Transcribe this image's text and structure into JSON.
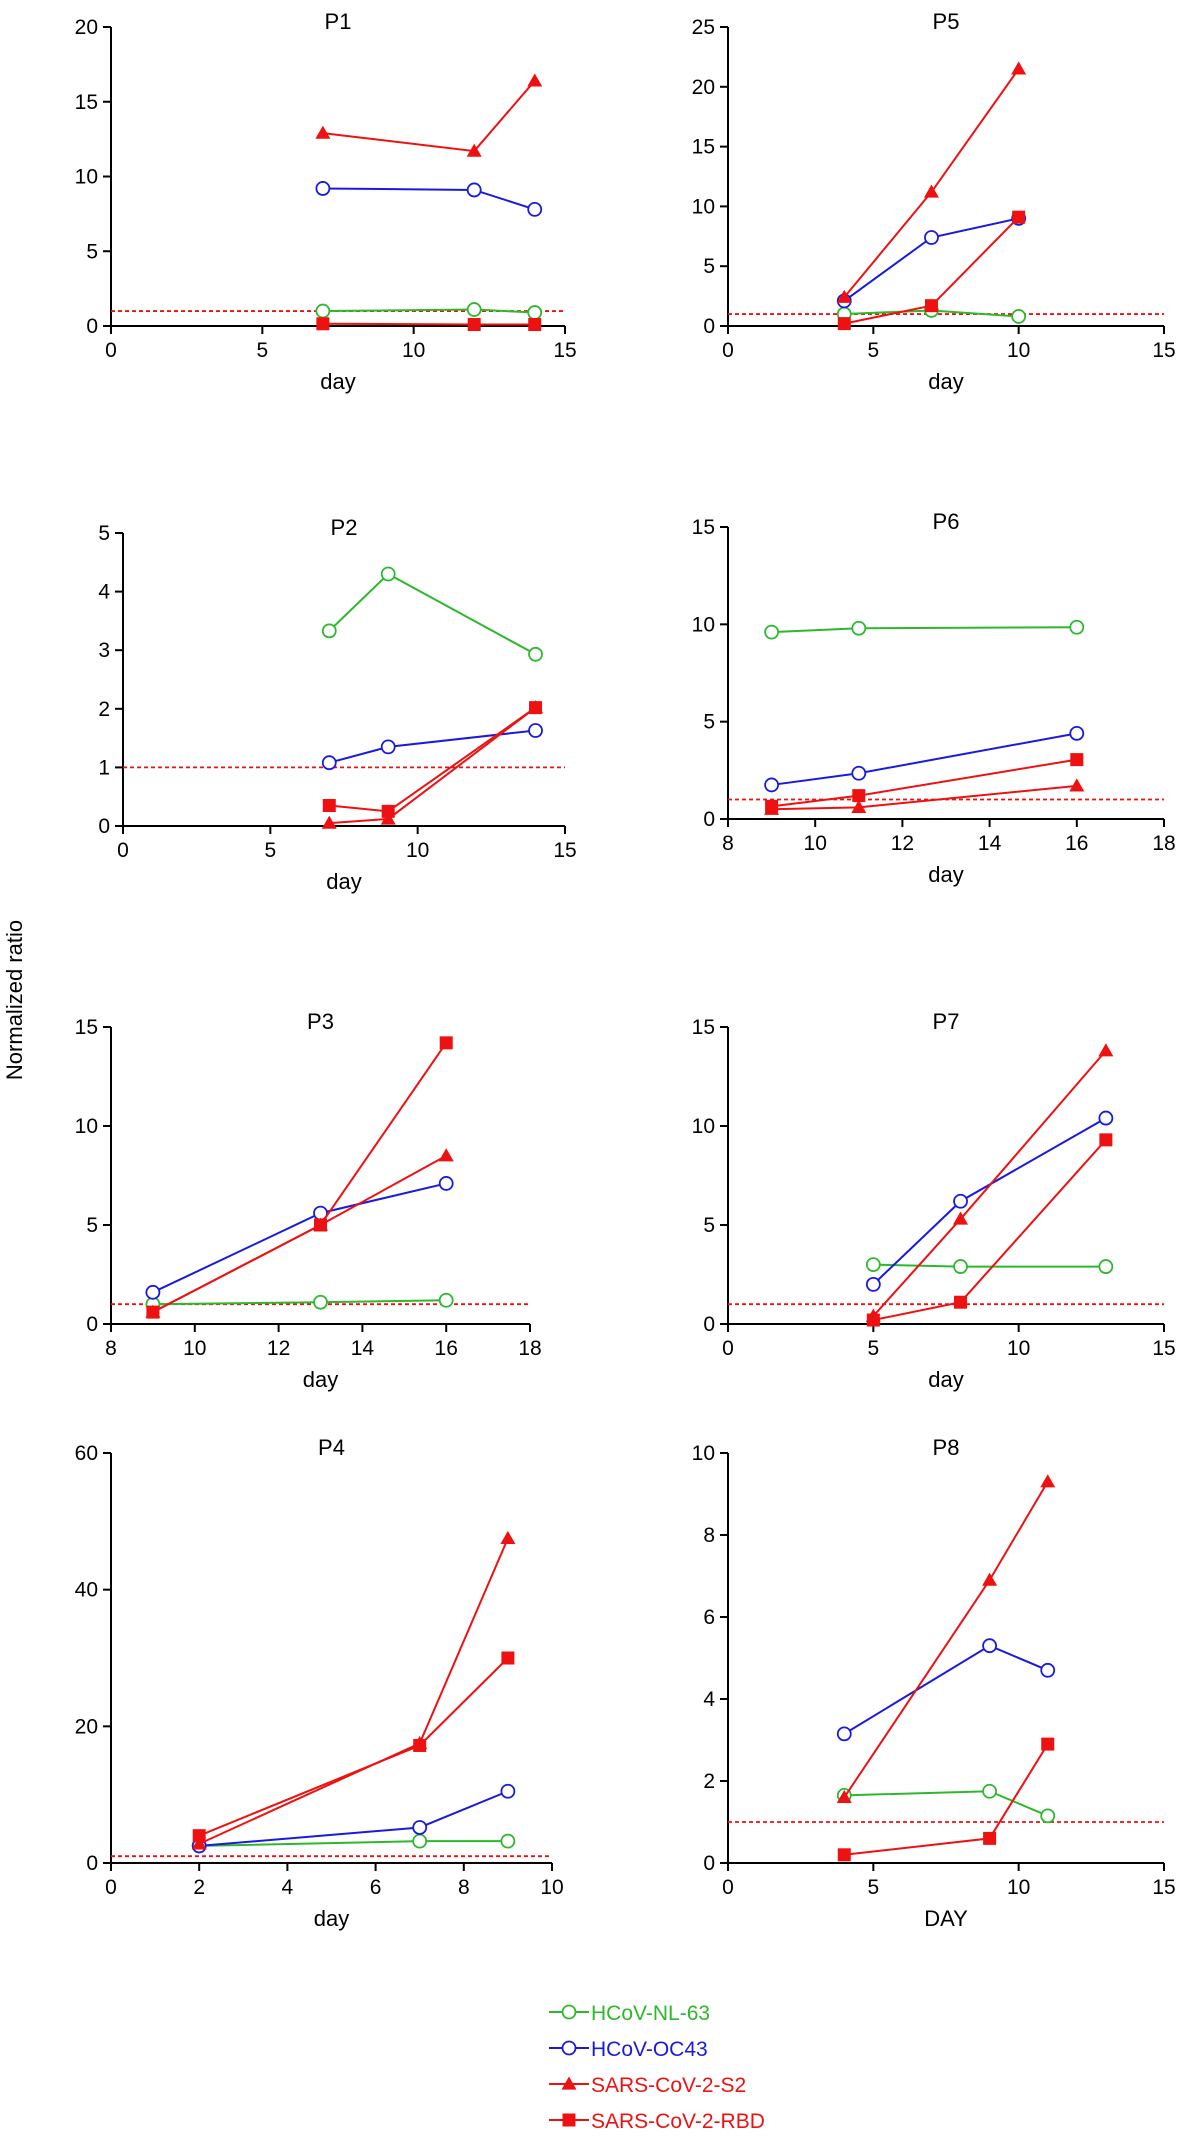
{
  "figure": {
    "ylabel": "Normalized  ratio",
    "colors": {
      "HCoV-NL-63": "#2db82d",
      "HCoV-OC43": "#1a1adf",
      "SARS-CoV-2-S2": "#ee1111",
      "SARS-CoV-2-RBD": "#ee1111",
      "threshold": "#ee1111",
      "axis": "#000000"
    },
    "legend": [
      {
        "name": "HCoV-NL-63",
        "marker": "circle-open"
      },
      {
        "name": "HCoV-OC43",
        "marker": "circle-open"
      },
      {
        "name": "SARS-CoV-2-S2",
        "marker": "triangle"
      },
      {
        "name": "SARS-CoV-2-RBD",
        "marker": "square"
      }
    ]
  },
  "chart_data": [
    {
      "id": "P1",
      "type": "line",
      "title": "P1",
      "xlabel": "day",
      "xlim": [
        0,
        15
      ],
      "xticks": [
        0,
        5,
        10,
        15
      ],
      "ylim": [
        0,
        20
      ],
      "yticks": [
        0,
        5,
        10,
        15,
        20
      ],
      "threshold": 1,
      "series": [
        {
          "name": "HCoV-NL-63",
          "x": [
            7,
            12,
            14
          ],
          "y": [
            1.0,
            1.1,
            0.9
          ]
        },
        {
          "name": "HCoV-OC43",
          "x": [
            7,
            12,
            14
          ],
          "y": [
            9.2,
            9.1,
            7.8
          ]
        },
        {
          "name": "SARS-CoV-2-S2",
          "x": [
            7,
            12,
            14
          ],
          "y": [
            12.9,
            11.7,
            16.4
          ]
        },
        {
          "name": "SARS-CoV-2-RBD",
          "x": [
            7,
            12,
            14
          ],
          "y": [
            0.15,
            0.1,
            0.1
          ]
        }
      ]
    },
    {
      "id": "P5",
      "type": "line",
      "title": "P5",
      "xlabel": "day",
      "xlim": [
        0,
        15
      ],
      "xticks": [
        0,
        5,
        10,
        15
      ],
      "ylim": [
        0,
        25
      ],
      "yticks": [
        0,
        5,
        10,
        15,
        20,
        25
      ],
      "threshold": 1,
      "series": [
        {
          "name": "HCoV-NL-63",
          "x": [
            4,
            7,
            10
          ],
          "y": [
            1.0,
            1.3,
            0.8
          ]
        },
        {
          "name": "HCoV-OC43",
          "x": [
            4,
            7,
            10
          ],
          "y": [
            2.1,
            7.4,
            9.0
          ]
        },
        {
          "name": "SARS-CoV-2-S2",
          "x": [
            4,
            7,
            10
          ],
          "y": [
            2.4,
            11.2,
            21.5
          ]
        },
        {
          "name": "SARS-CoV-2-RBD",
          "x": [
            4,
            7,
            10
          ],
          "y": [
            0.2,
            1.7,
            9.1
          ]
        }
      ]
    },
    {
      "id": "P2",
      "type": "line",
      "title": "P2",
      "xlabel": "day",
      "xlim": [
        0,
        15
      ],
      "xticks": [
        0,
        5,
        10,
        15
      ],
      "ylim": [
        0,
        5
      ],
      "yticks": [
        0,
        1,
        2,
        3,
        4,
        5
      ],
      "threshold": 1,
      "series": [
        {
          "name": "HCoV-NL-63",
          "x": [
            7,
            9,
            14
          ],
          "y": [
            3.33,
            4.3,
            2.93
          ]
        },
        {
          "name": "HCoV-OC43",
          "x": [
            7,
            9,
            14
          ],
          "y": [
            1.08,
            1.35,
            1.63
          ]
        },
        {
          "name": "SARS-CoV-2-S2",
          "x": [
            7,
            9,
            14
          ],
          "y": [
            0.05,
            0.12,
            2.02
          ]
        },
        {
          "name": "SARS-CoV-2-RBD",
          "x": [
            7,
            9,
            14
          ],
          "y": [
            0.35,
            0.25,
            2.02
          ]
        }
      ]
    },
    {
      "id": "P6",
      "type": "line",
      "title": "P6",
      "xlabel": "day",
      "xlim": [
        8,
        18
      ],
      "xticks": [
        8,
        10,
        12,
        14,
        16,
        18
      ],
      "ylim": [
        0,
        15
      ],
      "yticks": [
        0,
        5,
        10,
        15
      ],
      "threshold": 1,
      "series": [
        {
          "name": "HCoV-NL-63",
          "x": [
            9,
            11,
            16
          ],
          "y": [
            9.6,
            9.8,
            9.85
          ]
        },
        {
          "name": "HCoV-OC43",
          "x": [
            9,
            11,
            16
          ],
          "y": [
            1.75,
            2.35,
            4.4
          ]
        },
        {
          "name": "SARS-CoV-2-S2",
          "x": [
            9,
            11,
            16
          ],
          "y": [
            0.5,
            0.6,
            1.7
          ]
        },
        {
          "name": "SARS-CoV-2-RBD",
          "x": [
            9,
            11,
            16
          ],
          "y": [
            0.65,
            1.2,
            3.05
          ]
        }
      ]
    },
    {
      "id": "P3",
      "type": "line",
      "title": "P3",
      "xlabel": "day",
      "xlim": [
        8,
        18
      ],
      "xticks": [
        8,
        10,
        12,
        14,
        16,
        18
      ],
      "ylim": [
        0,
        15
      ],
      "yticks": [
        0,
        5,
        10,
        15
      ],
      "threshold": 1,
      "series": [
        {
          "name": "HCoV-NL-63",
          "x": [
            9,
            13,
            16
          ],
          "y": [
            1.0,
            1.1,
            1.2
          ]
        },
        {
          "name": "HCoV-OC43",
          "x": [
            9,
            13,
            16
          ],
          "y": [
            1.6,
            5.6,
            7.1
          ]
        },
        {
          "name": "SARS-CoV-2-S2",
          "x": [
            9,
            13,
            16
          ],
          "y": [
            0.6,
            5.0,
            8.5
          ]
        },
        {
          "name": "SARS-CoV-2-RBD",
          "x": [
            9,
            13,
            16
          ],
          "y": [
            0.6,
            5.0,
            14.2
          ]
        }
      ]
    },
    {
      "id": "P7",
      "type": "line",
      "title": "P7",
      "xlabel": "day",
      "xlim": [
        0,
        15
      ],
      "xticks": [
        0,
        5,
        10,
        15
      ],
      "ylim": [
        0,
        15
      ],
      "yticks": [
        0,
        5,
        10,
        15
      ],
      "threshold": 1,
      "series": [
        {
          "name": "HCoV-NL-63",
          "x": [
            5,
            8,
            13
          ],
          "y": [
            3.0,
            2.9,
            2.9
          ]
        },
        {
          "name": "HCoV-OC43",
          "x": [
            5,
            8,
            13
          ],
          "y": [
            2.0,
            6.2,
            10.4
          ]
        },
        {
          "name": "SARS-CoV-2-S2",
          "x": [
            5,
            8,
            13
          ],
          "y": [
            0.4,
            5.3,
            13.8
          ]
        },
        {
          "name": "SARS-CoV-2-RBD",
          "x": [
            5,
            8,
            13
          ],
          "y": [
            0.2,
            1.1,
            9.3
          ]
        }
      ]
    },
    {
      "id": "P4",
      "type": "line",
      "title": "P4",
      "xlabel": "day",
      "xlim": [
        0,
        10
      ],
      "xticks": [
        0,
        2,
        4,
        6,
        8,
        10
      ],
      "ylim": [
        0,
        60
      ],
      "yticks": [
        0,
        20,
        40,
        60
      ],
      "threshold": 1,
      "series": [
        {
          "name": "HCoV-NL-63",
          "x": [
            2,
            7,
            9
          ],
          "y": [
            2.5,
            3.2,
            3.2
          ]
        },
        {
          "name": "HCoV-OC43",
          "x": [
            2,
            7,
            9
          ],
          "y": [
            2.5,
            5.2,
            10.5
          ]
        },
        {
          "name": "SARS-CoV-2-S2",
          "x": [
            2,
            7,
            9
          ],
          "y": [
            2.8,
            17.5,
            47.5
          ]
        },
        {
          "name": "SARS-CoV-2-RBD",
          "x": [
            2,
            7,
            9
          ],
          "y": [
            4.0,
            17.2,
            30.0
          ]
        }
      ]
    },
    {
      "id": "P8",
      "type": "line",
      "title": "P8",
      "xlabel": "DAY",
      "xlim": [
        0,
        15
      ],
      "xticks": [
        0,
        5,
        10,
        15
      ],
      "ylim": [
        0,
        10
      ],
      "yticks": [
        0,
        2,
        4,
        6,
        8,
        10
      ],
      "threshold": 1,
      "series": [
        {
          "name": "HCoV-NL-63",
          "x": [
            4,
            9,
            11
          ],
          "y": [
            1.65,
            1.75,
            1.15
          ]
        },
        {
          "name": "HCoV-OC43",
          "x": [
            4,
            9,
            11
          ],
          "y": [
            3.15,
            5.3,
            4.7
          ]
        },
        {
          "name": "SARS-CoV-2-S2",
          "x": [
            4,
            9,
            11
          ],
          "y": [
            1.6,
            6.9,
            9.3
          ]
        },
        {
          "name": "SARS-CoV-2-RBD",
          "x": [
            4,
            9,
            11
          ],
          "y": [
            0.2,
            0.6,
            2.9
          ]
        }
      ]
    }
  ]
}
